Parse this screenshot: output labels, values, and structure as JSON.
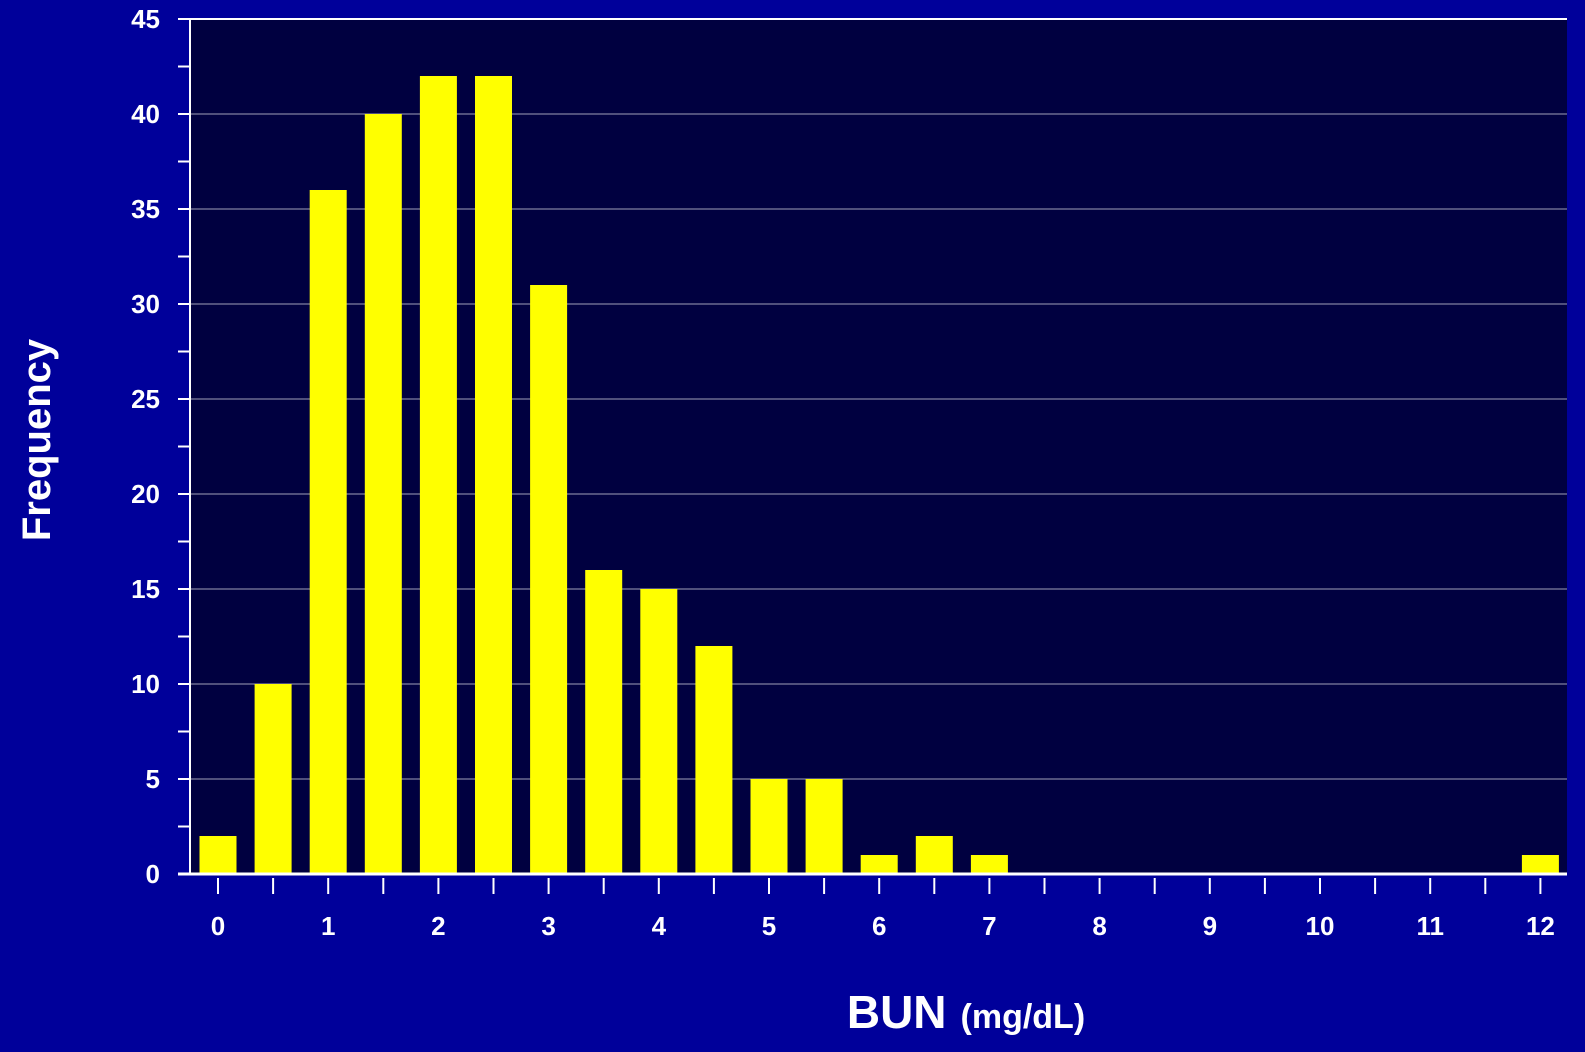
{
  "chart_data": {
    "type": "bar",
    "title": "",
    "xlabel": "BUN",
    "xlabel_unit": "(mg/dL)",
    "ylabel": "Frequency",
    "x": [
      0,
      0.5,
      1,
      1.5,
      2,
      2.5,
      3,
      3.5,
      4,
      4.5,
      5,
      5.5,
      6,
      6.5,
      7,
      12
    ],
    "values": [
      2,
      10,
      36,
      40,
      42,
      42,
      31,
      16,
      15,
      12,
      5,
      5,
      1,
      2,
      1,
      1
    ],
    "xlim": [
      0,
      12
    ],
    "ylim": [
      0,
      45
    ],
    "x_ticks": [
      "0",
      "1",
      "2",
      "3",
      "4",
      "5",
      "6",
      "7",
      "8",
      "9",
      "10",
      "11",
      "12"
    ],
    "y_ticks": [
      "0",
      "5",
      "10",
      "15",
      "20",
      "25",
      "30",
      "35",
      "40",
      "45"
    ],
    "grid": true,
    "colors": {
      "background": "#00009a",
      "plot_background": "#000040",
      "bar": "#ffff00",
      "grid": "#a0a0b8",
      "text": "#ffffff"
    }
  }
}
